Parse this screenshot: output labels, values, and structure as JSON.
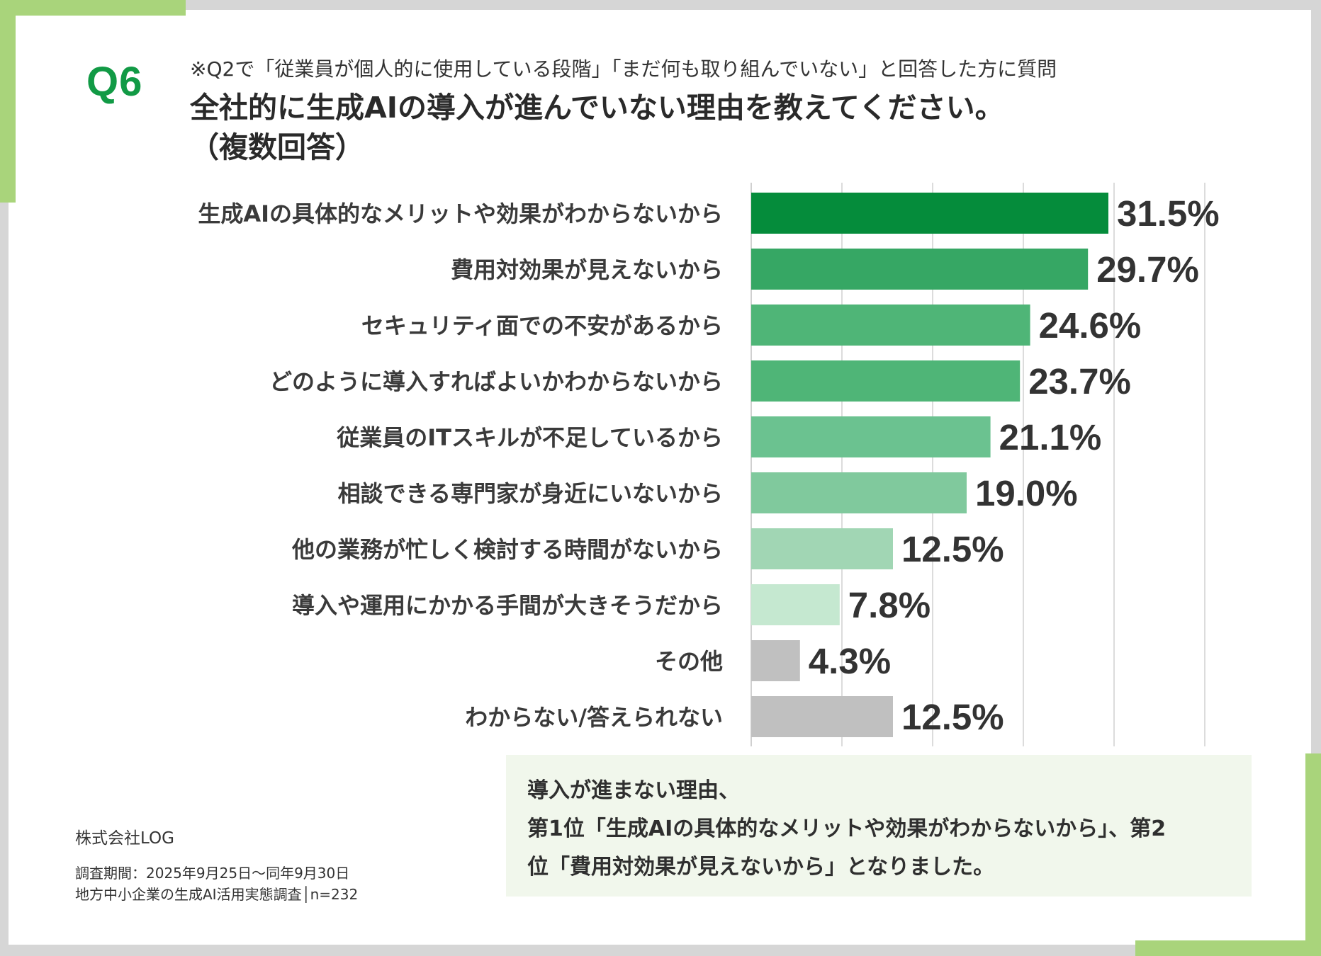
{
  "header": {
    "question_number": "Q6",
    "note": "※Q2で「従業員が個人的に使用している段階」「まだ何も取り組んでいない」と回答した方に質問",
    "title_line1": "全社的に生成AIの導入が進んでいない理由を教えてください。",
    "title_line2": "（複数回答）"
  },
  "colors": {
    "accent": "#a9d47b",
    "qnum": "#119a45",
    "bars": [
      "#058c3b",
      "#36a764",
      "#4fb577",
      "#4fb577",
      "#6bc290",
      "#80c99d",
      "#a1d6b4",
      "#c5e8d0",
      "#c0c0c0",
      "#c0c0c0"
    ]
  },
  "chart_data": {
    "type": "bar",
    "orientation": "horizontal",
    "categories": [
      "生成AIの具体的なメリットや効果がわからないから",
      "費用対効果が見えないから",
      "セキュリティ面での不安があるから",
      "どのように導入すればよいかわからないから",
      "従業員のITスキルが不足しているから",
      "相談できる専門家が身近にいないから",
      "他の業務が忙しく検討する時間がないから",
      "導入や運用にかかる手間が大きそうだから",
      "その他",
      "わからない/答えられない"
    ],
    "values": [
      31.5,
      29.7,
      24.6,
      23.7,
      21.1,
      19.0,
      12.5,
      7.8,
      4.3,
      12.5
    ],
    "value_labels": [
      "31.5%",
      "29.7%",
      "24.6%",
      "23.7%",
      "21.1%",
      "19.0%",
      "12.5%",
      "7.8%",
      "4.3%",
      "12.5%"
    ],
    "xlim": [
      0,
      40
    ],
    "grid": true
  },
  "summary": {
    "line1": "導入が進まない理由、",
    "line2": "第1位「生成AIの具体的なメリットや効果がわからないから」、第2",
    "line3": "位「費用対効果が見えないから」となりました。"
  },
  "source": {
    "company": "株式会社LOG",
    "period": "調査期間：2025年9月25日～同年9月30日",
    "survey": "地方中小企業の生成AI活用実態調査│n=232"
  }
}
